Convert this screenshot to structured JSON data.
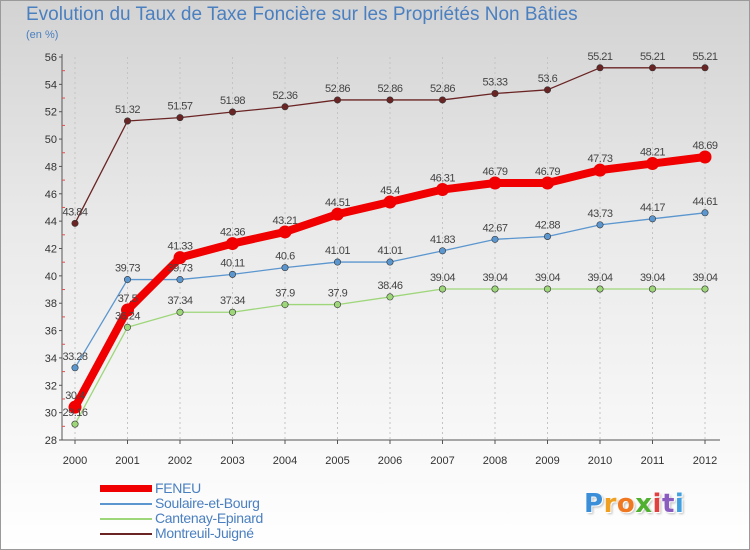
{
  "title": "Evolution du Taux de Taxe Foncière sur les Propriétés Non Bâties",
  "subtitle": "(en %)",
  "logo": {
    "letters": [
      "P",
      "r",
      "o",
      "x",
      "i",
      "t",
      "i"
    ],
    "colors": [
      "#3a8fd8",
      "#f0a020",
      "#f07820",
      "#50b030",
      "#e04040",
      "#8a5cc0",
      "#40a0e0"
    ]
  },
  "chart_data": {
    "type": "line",
    "title": "Evolution du Taux de Taxe Foncière sur les Propriétés Non Bâties",
    "ylabel": "(en %)",
    "xlabel": "",
    "x": [
      "2000",
      "2001",
      "2002",
      "2003",
      "2004",
      "2005",
      "2006",
      "2007",
      "2008",
      "2009",
      "2010",
      "2011",
      "2012"
    ],
    "ylim": [
      28,
      56
    ],
    "yticks": [
      "28",
      "30",
      "32",
      "34",
      "36",
      "38",
      "40",
      "42",
      "44",
      "46",
      "48",
      "50",
      "52",
      "54",
      "56"
    ],
    "grid": "vertical dashed",
    "legend": "bottom-left",
    "series": [
      {
        "name": "Montreuil-Juigné",
        "color": "#6b2424",
        "values": [
          43.84,
          51.32,
          51.57,
          51.98,
          52.36,
          52.86,
          52.86,
          52.86,
          53.33,
          53.6,
          55.21,
          55.21,
          55.21
        ],
        "labels": [
          "43.84",
          "51.32",
          "51.57",
          "51.98",
          "52.36",
          "52.86",
          "52.86",
          "52.86",
          "53.33",
          "53.6",
          "55.21",
          "55.21",
          "55.21"
        ]
      },
      {
        "name": "Soulaire-et-Bourg",
        "color": "#5b96cf",
        "values": [
          33.28,
          39.73,
          39.73,
          40.11,
          40.6,
          41.01,
          41.01,
          41.83,
          42.67,
          42.88,
          43.73,
          44.17,
          44.61
        ],
        "labels": [
          "33.28",
          "39.73",
          "39.73",
          "40.11",
          "40.6",
          "41.01",
          "41.01",
          "41.83",
          "42.67",
          "42.88",
          "43.73",
          "44.17",
          "44.61"
        ]
      },
      {
        "name": "Cantenay-Epinard",
        "color": "#9ed67a",
        "values": [
          29.16,
          36.24,
          37.34,
          37.34,
          37.9,
          37.9,
          38.46,
          39.04,
          39.04,
          39.04,
          39.04,
          39.04,
          39.04
        ],
        "labels": [
          "29.16",
          "36.24",
          "37.34",
          "37.34",
          "37.9",
          "37.9",
          "38.46",
          "39.04",
          "39.04",
          "39.04",
          "39.04",
          "39.04",
          "39.04"
        ]
      },
      {
        "name": "FENEU",
        "color": "#f00000",
        "values": [
          30.4,
          37.5,
          41.33,
          42.36,
          43.21,
          44.51,
          45.4,
          46.31,
          46.79,
          46.79,
          47.73,
          48.21,
          48.69
        ],
        "labels": [
          "30.4",
          "37.5",
          "41.33",
          "42.36",
          "43.21",
          "44.51",
          "45.4",
          "46.31",
          "46.79",
          "46.79",
          "47.73",
          "48.21",
          "48.69"
        ]
      }
    ]
  },
  "legend": [
    {
      "name": "FENEU",
      "color": "#f00000"
    },
    {
      "name": "Soulaire-et-Bourg",
      "color": "#5b96cf"
    },
    {
      "name": "Cantenay-Epinard",
      "color": "#9ed67a"
    },
    {
      "name": "Montreuil-Juigné",
      "color": "#6b2424"
    }
  ]
}
